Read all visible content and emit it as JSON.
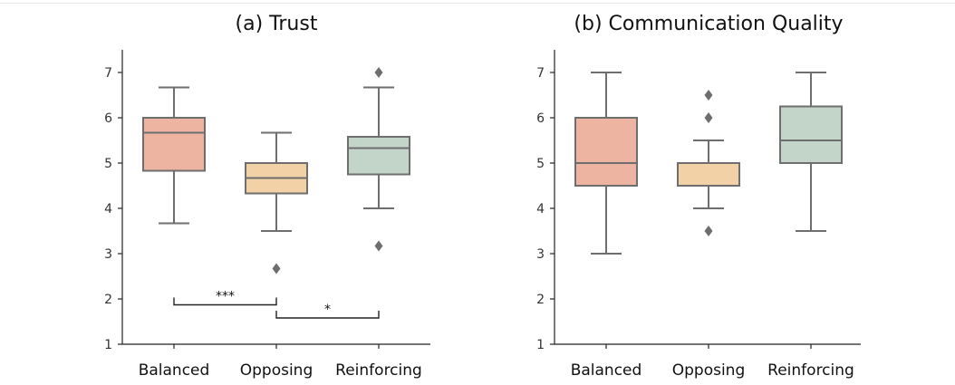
{
  "chart_data": [
    {
      "type": "box",
      "title": "(a) Trust",
      "categories": [
        "Balanced",
        "Opposing",
        "Reinforcing"
      ],
      "ylim": [
        1,
        7.5
      ],
      "yticks": [
        1,
        2,
        3,
        4,
        5,
        6,
        7
      ],
      "grid": false,
      "series": [
        {
          "category": "Balanced",
          "whisker_low": 3.67,
          "q1": 4.83,
          "median": 5.67,
          "q3": 6.0,
          "whisker_high": 6.67,
          "outliers": [],
          "color": "#eeb4a2"
        },
        {
          "category": "Opposing",
          "whisker_low": 3.5,
          "q1": 4.33,
          "median": 4.67,
          "q3": 5.0,
          "whisker_high": 5.67,
          "outliers": [
            2.67
          ],
          "color": "#f2d1a7"
        },
        {
          "category": "Reinforcing",
          "whisker_low": 4.0,
          "q1": 4.75,
          "median": 5.33,
          "q3": 5.58,
          "whisker_high": 6.67,
          "outliers": [
            7.0,
            3.17
          ],
          "color": "#c3d4c8"
        }
      ],
      "significance": [
        {
          "from": "Balanced",
          "to": "Opposing",
          "label": "***",
          "y": 1.87
        },
        {
          "from": "Opposing",
          "to": "Reinforcing",
          "label": "*",
          "y": 1.58
        }
      ]
    },
    {
      "type": "box",
      "title": "(b) Communication Quality",
      "categories": [
        "Balanced",
        "Opposing",
        "Reinforcing"
      ],
      "ylim": [
        1,
        7.5
      ],
      "yticks": [
        1,
        2,
        3,
        4,
        5,
        6,
        7
      ],
      "grid": false,
      "series": [
        {
          "category": "Balanced",
          "whisker_low": 3.0,
          "q1": 4.5,
          "median": 5.0,
          "q3": 6.0,
          "whisker_high": 7.0,
          "outliers": [],
          "color": "#eeb4a2"
        },
        {
          "category": "Opposing",
          "whisker_low": 4.0,
          "q1": 4.5,
          "median": 4.5,
          "q3": 5.0,
          "whisker_high": 5.5,
          "outliers": [
            6.5,
            6.0,
            3.5
          ],
          "color": "#f2d1a7"
        },
        {
          "category": "Reinforcing",
          "whisker_low": 3.5,
          "q1": 5.0,
          "median": 5.5,
          "q3": 6.25,
          "whisker_high": 7.0,
          "outliers": [],
          "color": "#c3d4c8"
        }
      ],
      "significance": []
    }
  ]
}
